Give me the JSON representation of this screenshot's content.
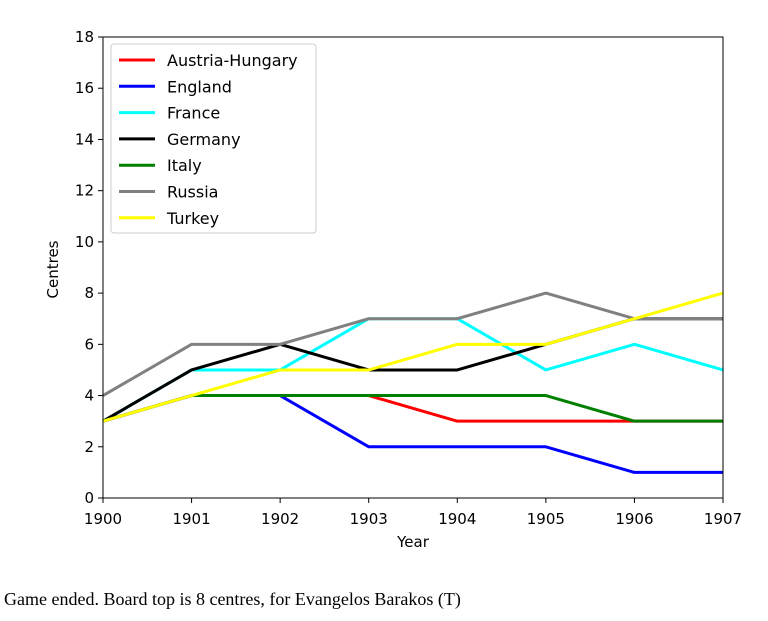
{
  "chart_data": {
    "type": "line",
    "title": "",
    "xlabel": "Year",
    "ylabel": "Centres",
    "x": [
      1900,
      1901,
      1902,
      1903,
      1904,
      1905,
      1906,
      1907
    ],
    "xlim": [
      1900,
      1907
    ],
    "ylim": [
      0,
      18
    ],
    "yticks": [
      0,
      2,
      4,
      6,
      8,
      10,
      12,
      14,
      16,
      18
    ],
    "xticks": [
      "1900",
      "1901",
      "1902",
      "1903",
      "1904",
      "1905",
      "1906",
      "1907"
    ],
    "grid": false,
    "legend_position": "top-left",
    "series": [
      {
        "name": "Austria-Hungary",
        "color": "#ff0000",
        "values": [
          3,
          4,
          4,
          4,
          3,
          3,
          3,
          3
        ]
      },
      {
        "name": "England",
        "color": "#0000ff",
        "values": [
          3,
          4,
          4,
          2,
          2,
          2,
          1,
          1
        ]
      },
      {
        "name": "France",
        "color": "#00ffff",
        "values": [
          3,
          5,
          5,
          7,
          7,
          5,
          6,
          5
        ]
      },
      {
        "name": "Germany",
        "color": "#000000",
        "values": [
          3,
          5,
          6,
          5,
          5,
          6,
          7,
          7
        ]
      },
      {
        "name": "Italy",
        "color": "#008000",
        "values": [
          3,
          4,
          4,
          4,
          4,
          4,
          3,
          3
        ]
      },
      {
        "name": "Russia",
        "color": "#808080",
        "values": [
          4,
          6,
          6,
          7,
          7,
          8,
          7,
          7
        ]
      },
      {
        "name": "Turkey",
        "color": "#ffff00",
        "values": [
          3,
          4,
          5,
          5,
          6,
          6,
          7,
          8
        ]
      }
    ]
  },
  "caption": "Game ended. Board top is 8 centres, for Evangelos Barakos (T)"
}
